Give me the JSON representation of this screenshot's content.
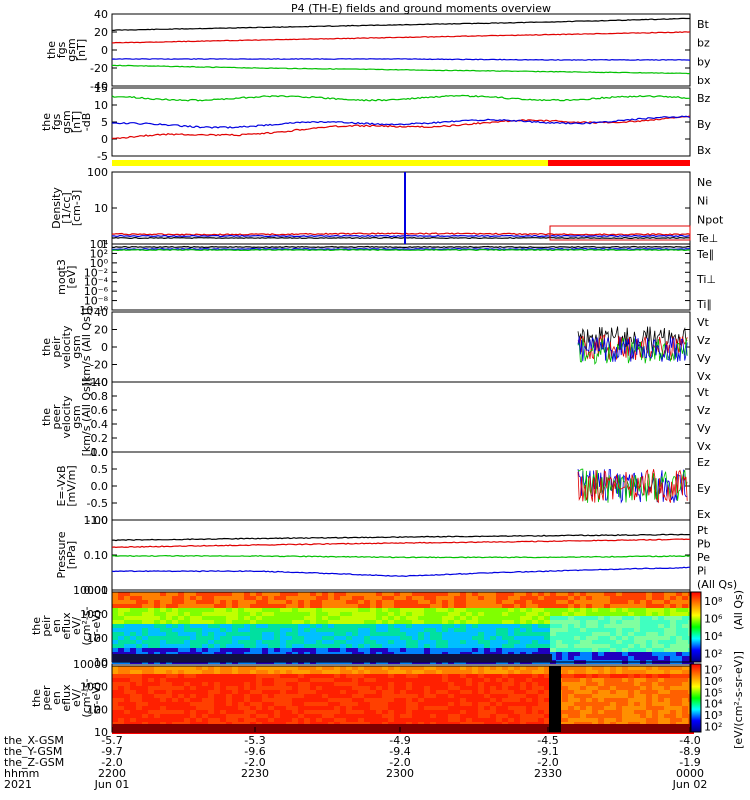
{
  "title": "P4 (TH-E) fields and ground moments overview",
  "x_axis": {
    "rows": [
      {
        "label": "the_X-GSM",
        "values": [
          "-5.7",
          "-5.3",
          "-4.9",
          "-4.5",
          "-4.0"
        ]
      },
      {
        "label": "the_Y-GSM",
        "values": [
          "-9.7",
          "-9.6",
          "-9.4",
          "-9.1",
          "-8.9"
        ]
      },
      {
        "label": "the_Z-GSM",
        "values": [
          "-2.0",
          "-2.0",
          "-2.0",
          "-2.0",
          "-1.9"
        ]
      },
      {
        "label": "hhmm",
        "values": [
          "2200",
          "2230",
          "2300",
          "2330",
          "0000"
        ]
      },
      {
        "label": "2021",
        "values": [
          "Jun 01",
          "",
          "",
          "",
          "Jun 02"
        ]
      }
    ]
  },
  "panels": [
    {
      "id": "p1",
      "ylabel": [
        "the",
        "fgs",
        "gsm",
        "[nT]"
      ],
      "yticks": [
        "40",
        "20",
        "0",
        "-20",
        "-40"
      ],
      "legend": [
        {
          "t": "Bt",
          "c": "#000000"
        },
        {
          "t": "bz",
          "c": "#e00000"
        },
        {
          "t": "by",
          "c": "#00c000"
        },
        {
          "t": "bx",
          "c": "#0000e0"
        }
      ]
    },
    {
      "id": "p2",
      "ylabel": [
        "the",
        "fgs",
        "gsm",
        "[nT]",
        "-dB"
      ],
      "yticks": [
        "15",
        "10",
        "5",
        "0",
        "-5"
      ],
      "legend": [
        {
          "t": "Bz",
          "c": "#e00000"
        },
        {
          "t": "By",
          "c": "#00c000"
        },
        {
          "t": "Bx",
          "c": "#0000e0"
        }
      ]
    },
    {
      "id": "p3",
      "ylabel": [
        "Density",
        "[1/cc]",
        "[cm-3]"
      ],
      "yticks": [
        "100",
        "10",
        "1"
      ],
      "legend": [
        {
          "t": "Ne",
          "c": "#e00000"
        },
        {
          "t": "Ni",
          "c": "#000000"
        },
        {
          "t": "Npot",
          "c": "#0000e0"
        },
        {
          "t": "Te⊥",
          "c": "#e00000"
        }
      ]
    },
    {
      "id": "p4",
      "ylabel": [
        "moqt3",
        "[eV]"
      ],
      "yticks": [
        "10⁴",
        "10²",
        "10⁰",
        "10⁻²",
        "10⁻⁴",
        "10⁻⁶",
        "10⁻⁸",
        "10⁻¹⁰"
      ],
      "legend": [
        {
          "t": "Te∥",
          "c": "#000000"
        },
        {
          "t": "Ti⊥",
          "c": "#0000e0"
        },
        {
          "t": "Ti∥",
          "c": "#00c000"
        }
      ]
    },
    {
      "id": "p5",
      "ylabel": [
        "the",
        "peir",
        "velocity",
        "gsm",
        "[km/s (All Qs)]"
      ],
      "yticks": [
        "40",
        "20",
        "0",
        "-20",
        "-40"
      ],
      "legend": [
        {
          "t": "Vt",
          "c": "#000000"
        },
        {
          "t": "Vz",
          "c": "#e00000"
        },
        {
          "t": "Vy",
          "c": "#00c000"
        },
        {
          "t": "Vx",
          "c": "#0000e0"
        }
      ]
    },
    {
      "id": "p6",
      "ylabel": [
        "the",
        "peer",
        "velocity",
        "gsm",
        "[km/s (All Qs)]"
      ],
      "yticks": [
        "1.0",
        "0.8",
        "0.6",
        "0.4",
        "0.2",
        "0.0"
      ],
      "legend": [
        {
          "t": "Vt",
          "c": "#000000"
        },
        {
          "t": "Vz",
          "c": "#e00000"
        },
        {
          "t": "Vy",
          "c": "#00c000"
        },
        {
          "t": "Vx",
          "c": "#0000e0"
        }
      ]
    },
    {
      "id": "p7",
      "ylabel": [
        "E=-VxB",
        "[mV/m]"
      ],
      "yticks": [
        "1.0",
        "0.5",
        "0.0",
        "-0.5",
        "-1.0"
      ],
      "legend": [
        {
          "t": "Ez",
          "c": "#e00000"
        },
        {
          "t": "Ey",
          "c": "#00c000"
        },
        {
          "t": "Ex",
          "c": "#0000e0"
        }
      ]
    },
    {
      "id": "p8",
      "ylabel": [
        "Pressure",
        "[nPa]"
      ],
      "yticks": [
        "1.00",
        "0.10",
        "0.01"
      ],
      "legend": [
        {
          "t": "Pt",
          "c": "#000000"
        },
        {
          "t": "Pb",
          "c": "#e00000"
        },
        {
          "t": "Pe",
          "c": "#00c000"
        },
        {
          "t": "Pi",
          "c": "#0000e0"
        },
        {
          "t": "(All Qs)",
          "c": "#000000"
        }
      ]
    },
    {
      "id": "p9",
      "ylabel": [
        "the",
        "peir",
        "en",
        "eflux",
        "eV/",
        "(cm²-s-",
        "sr-eV)"
      ],
      "yticks": [
        "10000",
        "1000",
        "100",
        "10"
      ],
      "legend": []
    },
    {
      "id": "p10",
      "ylabel": [
        "the",
        "peer",
        "en",
        "eflux",
        "eV/",
        "(cm²-s-",
        "sr-eV)"
      ],
      "yticks": [
        "10000",
        "1000",
        "100",
        "10"
      ],
      "legend": []
    }
  ],
  "colorbar_label": "[eV/(cm²-s-sr-eV)]",
  "colorbar_label_2": "(All Qs)",
  "colorbar1_ticks": [
    "10⁸",
    "10⁶",
    "10⁴",
    "10²"
  ],
  "colorbar2_ticks": [
    "10⁷",
    "10⁶",
    "10⁵",
    "10⁴",
    "10³",
    "10²"
  ],
  "chart_data": {
    "type": "line",
    "title": "P4 (TH-E) fields and ground moments overview",
    "x": [
      "2200",
      "2230",
      "2300",
      "2330",
      "0000"
    ],
    "series": [
      {
        "name": "Bt",
        "values": [
          22,
          25,
          28,
          31,
          35
        ]
      },
      {
        "name": "bz",
        "values": [
          8,
          11,
          14,
          17,
          20
        ]
      },
      {
        "name": "by",
        "values": [
          -10,
          -10,
          -10,
          -11,
          -11
        ]
      },
      {
        "name": "bx",
        "values": [
          -17,
          -20,
          -22,
          -24,
          -26
        ]
      },
      {
        "name": "Bz",
        "values": [
          0,
          2,
          4,
          5,
          6
        ]
      },
      {
        "name": "By",
        "values": [
          4,
          4,
          5,
          5,
          6
        ]
      },
      {
        "name": "Bx",
        "values": [
          12,
          12,
          12,
          12,
          12
        ]
      },
      {
        "name": "Pt",
        "values": [
          0.35,
          0.4,
          0.45,
          0.5,
          0.55
        ]
      },
      {
        "name": "Pb",
        "values": [
          0.2,
          0.24,
          0.28,
          0.32,
          0.38
        ]
      },
      {
        "name": "Pe",
        "values": [
          0.1,
          0.1,
          0.09,
          0.09,
          0.1
        ]
      },
      {
        "name": "Pi",
        "values": [
          0.03,
          0.03,
          0.02,
          0.03,
          0.04
        ]
      }
    ]
  }
}
